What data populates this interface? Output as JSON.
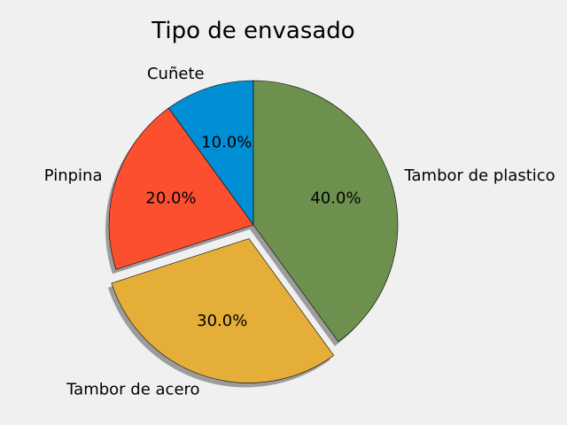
{
  "chart_data": {
    "type": "pie",
    "title": "Tipo de envasado",
    "labels": [
      "Cuñete",
      "Pinpina",
      "Tambor de acero",
      "Tambor de plastico"
    ],
    "values": [
      10,
      20,
      30,
      40
    ],
    "percent_labels": [
      "10.0%",
      "20.0%",
      "30.0%",
      "40.0%"
    ],
    "colors": [
      "#008fd5",
      "#fc4f30",
      "#e5ae38",
      "#6d904f"
    ],
    "exploded": [
      false,
      false,
      true,
      false
    ],
    "shadow": true,
    "start_angle": 90,
    "direction": "counterclockwise"
  }
}
